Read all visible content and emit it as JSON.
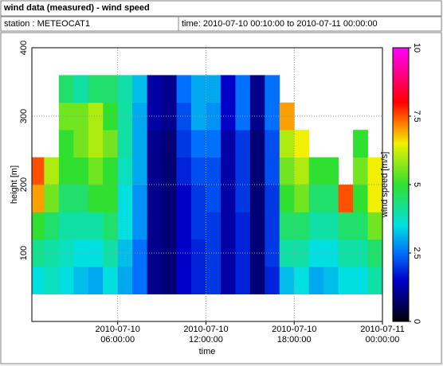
{
  "header": {
    "title": "wind data (measured) - wind speed",
    "station": "station : METEOCAT1",
    "period": "time: 2010-07-10 00:10:00 to 2010-07-11 00:00:00"
  },
  "chart_data": {
    "type": "heatmap",
    "xlabel": "time",
    "ylabel": "height [m]",
    "colorbar_label": "wind speed [m/s]",
    "x": [
      "2010-07-10 00:10:00",
      "2010-07-10 01:00:00",
      "2010-07-10 02:00:00",
      "2010-07-10 03:00:00",
      "2010-07-10 04:00:00",
      "2010-07-10 05:00:00",
      "2010-07-10 06:00:00",
      "2010-07-10 07:00:00",
      "2010-07-10 08:00:00",
      "2010-07-10 09:00:00",
      "2010-07-10 10:00:00",
      "2010-07-10 11:00:00",
      "2010-07-10 12:00:00",
      "2010-07-10 13:00:00",
      "2010-07-10 14:00:00",
      "2010-07-10 15:00:00",
      "2010-07-10 16:00:00",
      "2010-07-10 17:00:00",
      "2010-07-10 18:00:00",
      "2010-07-10 19:00:00",
      "2010-07-10 20:00:00",
      "2010-07-10 21:00:00",
      "2010-07-10 22:00:00",
      "2010-07-10 23:00:00"
    ],
    "xlim": [
      "2010-07-10 00:10:00",
      "2010-07-11 00:00:00"
    ],
    "xticks": [
      {
        "value": "2010-07-10 06:00:00",
        "label": "2010-07-10\n06:00:00"
      },
      {
        "value": "2010-07-10 12:00:00",
        "label": "2010-07-10\n12:00:00"
      },
      {
        "value": "2010-07-10 18:00:00",
        "label": "2010-07-10\n18:00:00"
      },
      {
        "value": "2010-07-11 00:00:00",
        "label": "2010-07-11\n00:00:00"
      }
    ],
    "y_bins": [
      40,
      80,
      120,
      160,
      200,
      240,
      280,
      320,
      360
    ],
    "ylim": [
      0,
      400
    ],
    "yticks": [
      100,
      200,
      300,
      400
    ],
    "clim": [
      0,
      10
    ],
    "cticks": [
      0,
      2.5,
      5,
      7.5,
      10
    ],
    "colormap": [
      [
        0,
        "#000000"
      ],
      [
        0.5,
        "#000050"
      ],
      [
        1.5,
        "#0000c8"
      ],
      [
        2.5,
        "#0070ff"
      ],
      [
        3.5,
        "#00e0e0"
      ],
      [
        5,
        "#30e030"
      ],
      [
        6.5,
        "#f0f000"
      ],
      [
        7.2,
        "#ff8000"
      ],
      [
        8,
        "#ff0000"
      ],
      [
        10,
        "#ff00ff"
      ]
    ],
    "grid": true,
    "values": [
      [
        3.5,
        3.8,
        3.5,
        3.2,
        3.0,
        3.5,
        3.0,
        2.5,
        1.0,
        0.8,
        1.5,
        1.8,
        2.0,
        1.2,
        1.8,
        0.8,
        1.8,
        3.2,
        3.5,
        3.0,
        3.2,
        3.5,
        3.5,
        4.0
      ],
      [
        4.2,
        4.0,
        3.8,
        3.5,
        3.5,
        4.0,
        3.2,
        2.5,
        1.0,
        0.8,
        1.5,
        1.8,
        2.0,
        1.2,
        1.8,
        0.8,
        2.0,
        4.0,
        4.0,
        3.5,
        3.5,
        4.0,
        4.0,
        4.5
      ],
      [
        5.0,
        4.5,
        4.0,
        4.0,
        4.0,
        4.5,
        3.5,
        2.8,
        1.0,
        0.8,
        1.5,
        2.0,
        2.0,
        1.2,
        1.8,
        0.8,
        2.0,
        4.5,
        4.5,
        4.0,
        4.0,
        4.5,
        4.5,
        5.5
      ],
      [
        7.0,
        5.5,
        4.5,
        4.5,
        5.0,
        5.0,
        3.5,
        2.8,
        1.0,
        0.8,
        1.5,
        2.0,
        2.2,
        1.2,
        2.0,
        0.8,
        2.0,
        5.0,
        5.5,
        4.5,
        4.5,
        7.5,
        5.0,
        6.5
      ],
      [
        7.5,
        6.0,
        5.0,
        5.0,
        5.5,
        5.0,
        3.8,
        3.0,
        1.0,
        0.8,
        1.8,
        2.2,
        2.2,
        1.2,
        2.0,
        0.8,
        2.2,
        5.5,
        6.0,
        5.0,
        5.0,
        null,
        5.5,
        6.5
      ],
      [
        null,
        null,
        5.0,
        5.5,
        6.0,
        5.5,
        4.0,
        3.0,
        1.0,
        0.8,
        2.0,
        2.5,
        2.5,
        1.2,
        2.0,
        0.8,
        2.2,
        6.0,
        6.5,
        null,
        null,
        null,
        5.0,
        null
      ],
      [
        null,
        null,
        5.5,
        5.5,
        6.0,
        5.0,
        4.0,
        3.0,
        1.2,
        1.0,
        2.2,
        3.0,
        2.8,
        1.5,
        2.5,
        1.0,
        2.5,
        7.0,
        null,
        null,
        null,
        null,
        null,
        null
      ],
      [
        null,
        null,
        4.5,
        4.0,
        4.5,
        4.5,
        4.0,
        3.2,
        1.2,
        1.0,
        2.5,
        3.0,
        3.0,
        1.5,
        2.5,
        1.0,
        2.5,
        null,
        null,
        null,
        null,
        null,
        null,
        null
      ]
    ]
  }
}
